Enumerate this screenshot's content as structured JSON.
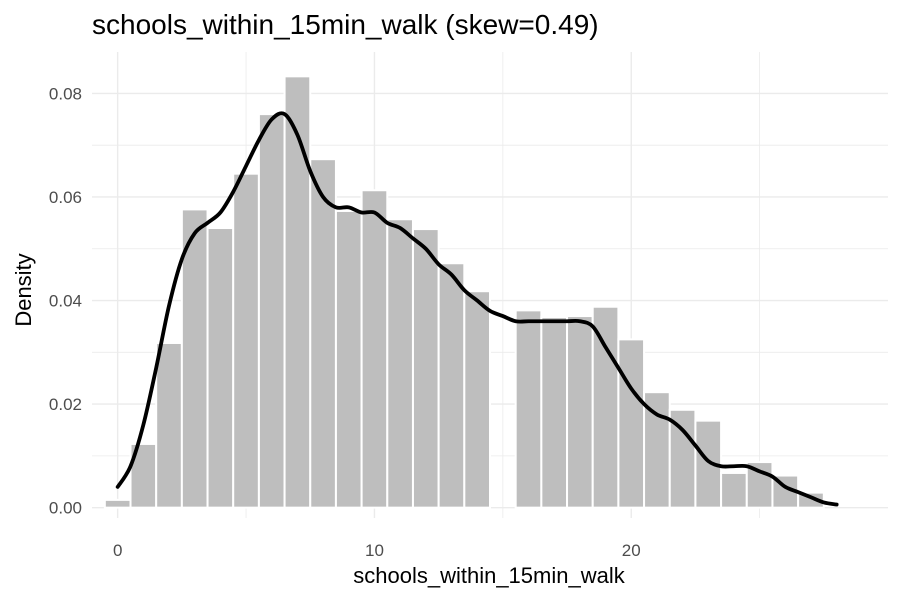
{
  "chart_data": {
    "type": "bar",
    "title": "schools_within_15min_walk (skew=0.49)",
    "xlabel": "schools_within_15min_walk",
    "ylabel": "Density",
    "xlim": [
      -1,
      30
    ],
    "ylim": [
      -0.002,
      0.088
    ],
    "x_ticks": [
      0,
      10,
      20
    ],
    "x_tick_labels": [
      "0",
      "10",
      "20"
    ],
    "y_ticks": [
      0,
      0.02,
      0.04,
      0.06,
      0.08
    ],
    "y_tick_labels": [
      "0.00",
      "0.02",
      "0.04",
      "0.06",
      "0.08"
    ],
    "grid": true,
    "bar_color": "#bebebe",
    "line_color": "#000000",
    "grid_color": "#ebebeb",
    "bins": {
      "x": [
        0,
        1,
        2,
        3,
        4,
        5,
        6,
        7,
        8,
        9,
        10,
        11,
        12,
        13,
        14,
        15,
        16,
        17,
        18,
        19,
        20,
        21,
        22,
        23,
        24,
        25,
        26,
        27
      ],
      "density": [
        0.0015,
        0.0123,
        0.0318,
        0.0576,
        0.054,
        0.0645,
        0.076,
        0.0833,
        0.0673,
        0.0573,
        0.0613,
        0.0557,
        0.0538,
        0.0472,
        0.0418,
        0,
        0.0381,
        0.0368,
        0.037,
        0.0388,
        0.0325,
        0.0223,
        0.0189,
        0.0168,
        0.0067,
        0.0088,
        0.0062,
        0.0029
      ]
    },
    "density_curve": {
      "name": "density",
      "x": [
        0,
        0.5,
        1,
        1.5,
        2,
        2.5,
        3,
        3.5,
        4,
        4.5,
        5,
        5.5,
        6,
        6.5,
        7,
        7.5,
        8,
        8.5,
        9,
        9.5,
        10,
        10.5,
        11,
        11.5,
        12,
        12.5,
        13,
        13.5,
        14,
        14.5,
        15,
        15.5,
        16,
        16.5,
        17,
        17.5,
        18,
        18.5,
        19,
        19.5,
        20,
        20.5,
        21,
        21.5,
        22,
        22.5,
        23,
        23.5,
        24,
        24.5,
        25,
        25.5,
        26,
        26.5,
        27,
        27.5,
        28
      ],
      "y": [
        0.004,
        0.008,
        0.016,
        0.027,
        0.039,
        0.048,
        0.053,
        0.055,
        0.057,
        0.061,
        0.066,
        0.071,
        0.075,
        0.076,
        0.072,
        0.065,
        0.06,
        0.058,
        0.058,
        0.057,
        0.057,
        0.055,
        0.054,
        0.052,
        0.05,
        0.047,
        0.045,
        0.042,
        0.04,
        0.038,
        0.037,
        0.036,
        0.036,
        0.036,
        0.036,
        0.036,
        0.036,
        0.035,
        0.031,
        0.027,
        0.023,
        0.02,
        0.018,
        0.017,
        0.015,
        0.012,
        0.009,
        0.008,
        0.008,
        0.008,
        0.007,
        0.006,
        0.004,
        0.003,
        0.002,
        0.001,
        0.0006
      ]
    }
  }
}
